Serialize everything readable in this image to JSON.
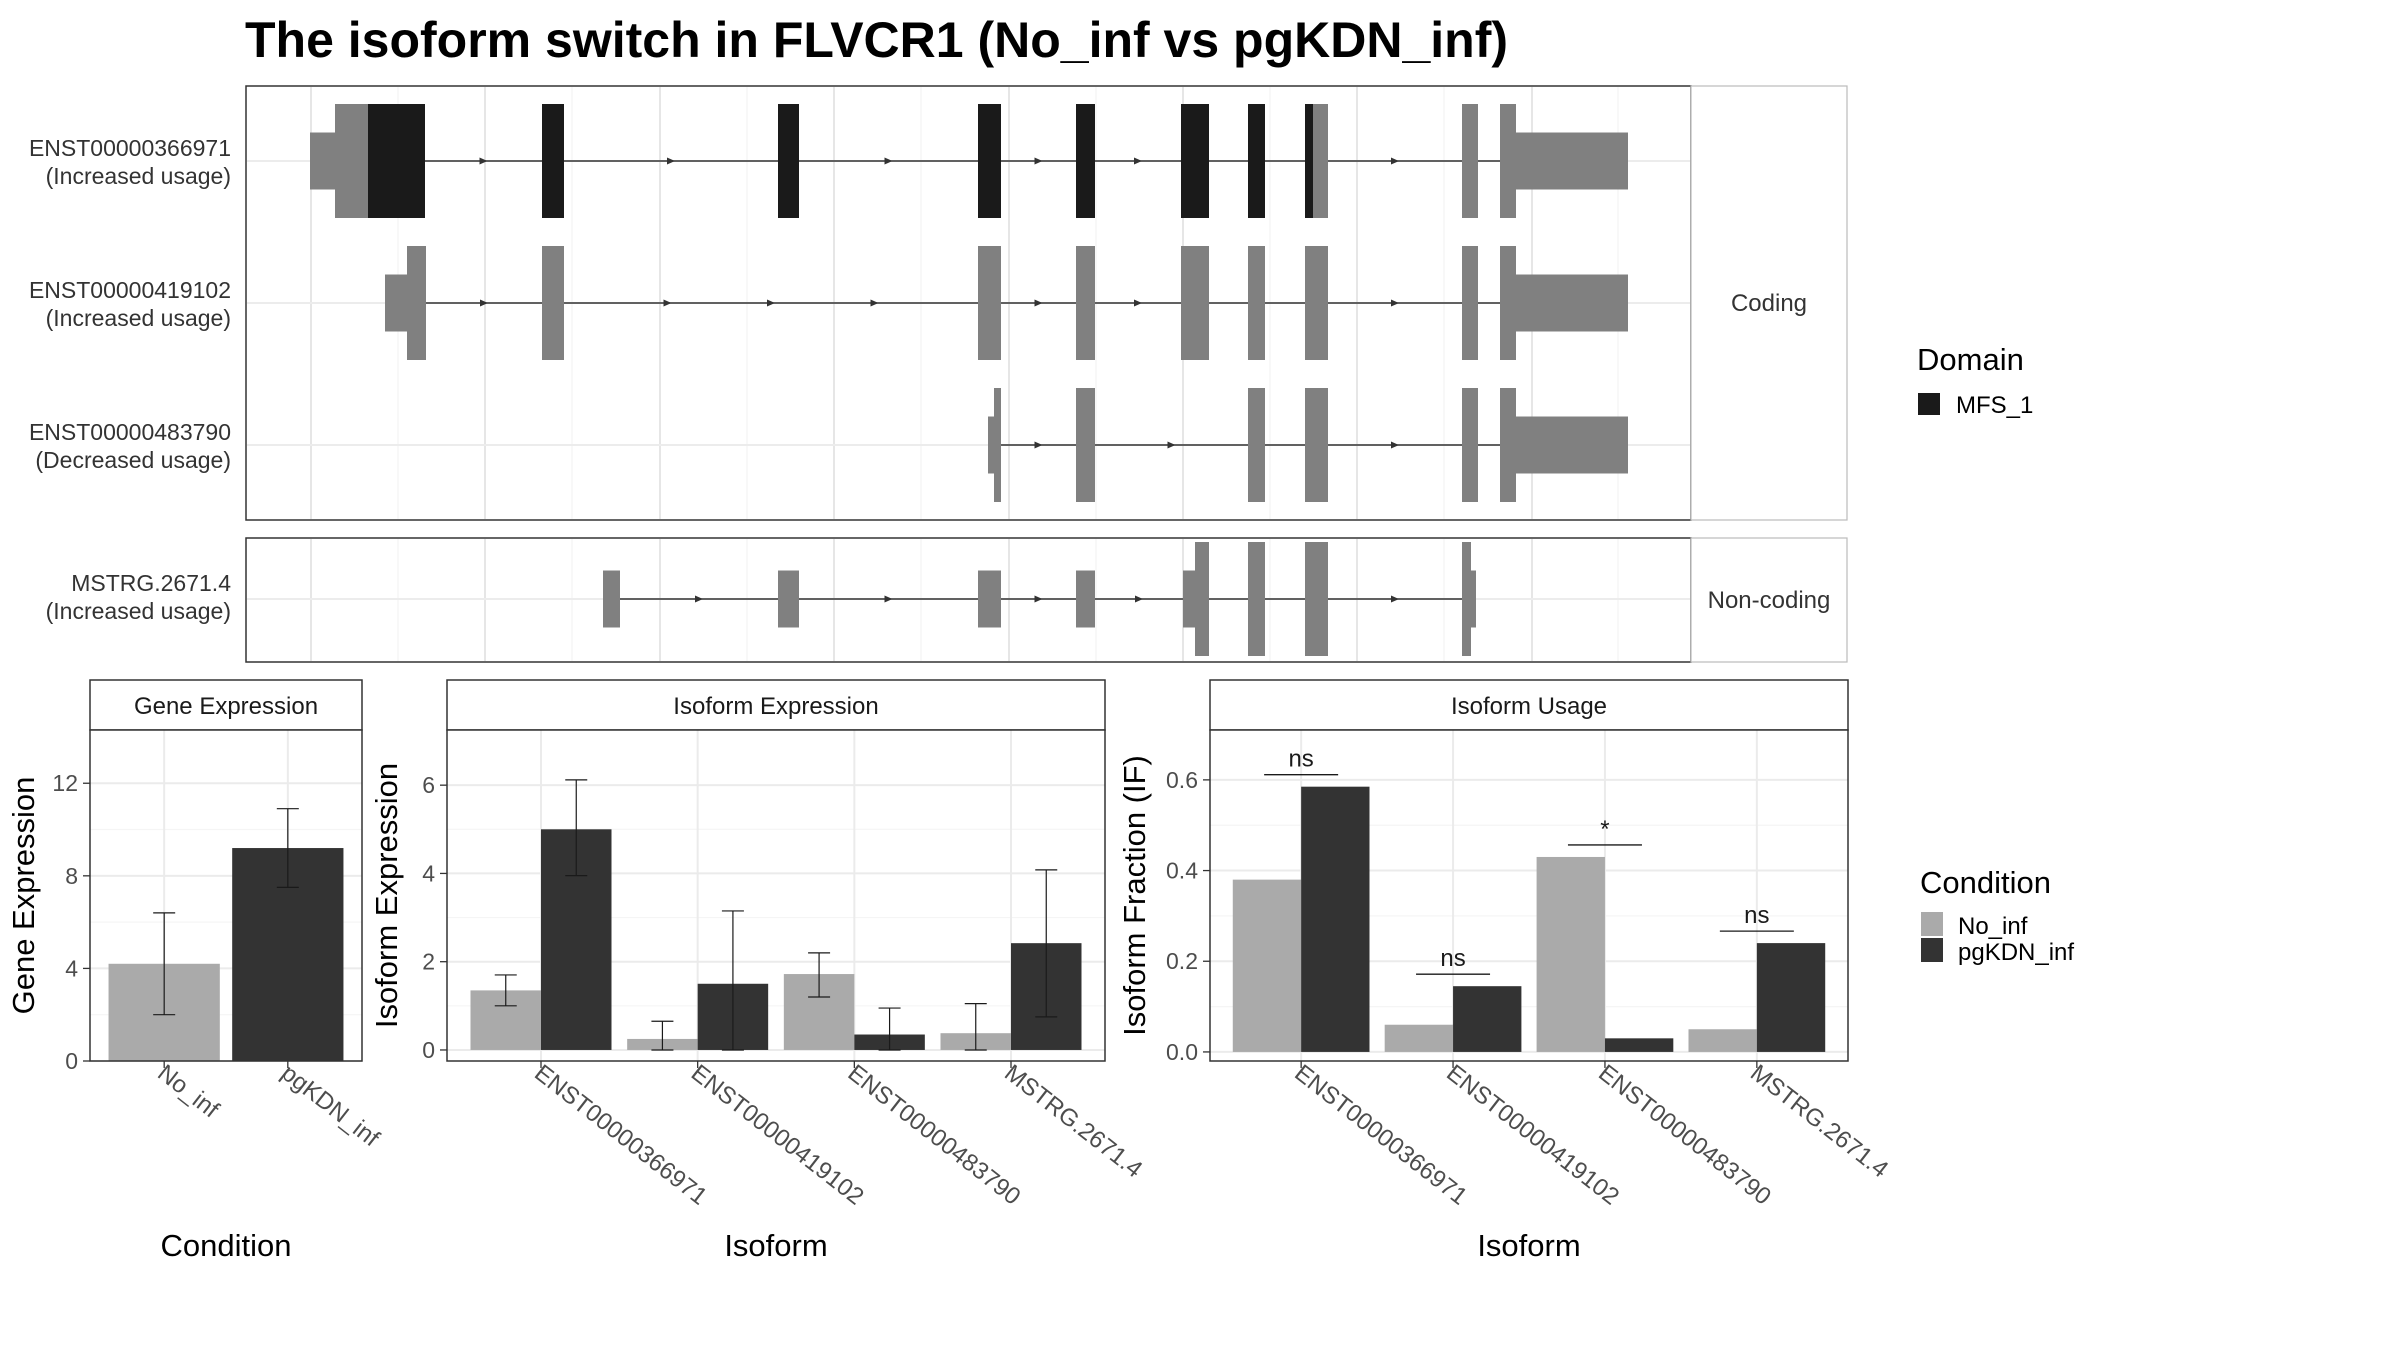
{
  "title": "The isoform switch in FLVCR1 (No_inf vs pgKDN_inf)",
  "transcript_panel": {
    "facets": [
      {
        "label": "Coding",
        "transcripts": [
          "ENST00000366971",
          "ENST00000419102",
          "ENST00000483790"
        ]
      },
      {
        "label": "Non-coding",
        "transcripts": [
          "MSTRG.2671.4"
        ]
      }
    ],
    "transcripts": [
      {
        "id": "ENST00000366971",
        "usage": "(Increased usage)"
      },
      {
        "id": "ENST00000419102",
        "usage": "(Increased usage)"
      },
      {
        "id": "ENST00000483790",
        "usage": "(Decreased usage)"
      },
      {
        "id": "MSTRG.2671.4",
        "usage": "(Increased usage)"
      }
    ]
  },
  "legend_domain": {
    "title": "Domain",
    "items": [
      {
        "label": "MFS_1",
        "color": "#1a1a1a"
      }
    ]
  },
  "legend_condition": {
    "title": "Condition",
    "items": [
      {
        "label": "No_inf",
        "color": "#aaaaaa"
      },
      {
        "label": "pgKDN_inf",
        "color": "#333333"
      }
    ]
  },
  "colors": {
    "no_inf": "#aaaaaa",
    "pgkdn_inf": "#333333",
    "exon": "#808080",
    "domain": "#1a1a1a"
  },
  "chart_data": [
    {
      "type": "bar",
      "title": "Gene Expression",
      "xlabel": "Condition",
      "ylabel": "Gene Expression",
      "categories": [
        "No_inf",
        "pgKDN_inf"
      ],
      "values": [
        4.2,
        9.2
      ],
      "error_low": [
        2.0,
        7.5
      ],
      "error_high": [
        6.4,
        10.9
      ],
      "yticks": [
        "0",
        "4",
        "8",
        "12"
      ],
      "ylim": [
        0,
        14.3
      ]
    },
    {
      "type": "bar",
      "title": "Isoform Expression",
      "xlabel": "Isoform",
      "ylabel": "Isoform Expression",
      "categories": [
        "ENST00000366971",
        "ENST00000419102",
        "ENST00000483790",
        "MSTRG.2671.4"
      ],
      "series": [
        {
          "name": "No_inf",
          "values": [
            1.35,
            0.25,
            1.72,
            0.38
          ],
          "error_low": [
            1.0,
            0.0,
            1.2,
            0.0
          ],
          "error_high": [
            1.7,
            0.65,
            2.2,
            1.05
          ]
        },
        {
          "name": "pgKDN_inf",
          "values": [
            5.0,
            1.5,
            0.35,
            2.42
          ],
          "error_low": [
            3.95,
            0.0,
            0.0,
            0.75
          ],
          "error_high": [
            6.12,
            3.15,
            0.95,
            4.08
          ]
        }
      ],
      "yticks": [
        "0",
        "2",
        "4",
        "6"
      ],
      "ylim": [
        -0.25,
        7.25
      ]
    },
    {
      "type": "bar",
      "title": "Isoform Usage",
      "xlabel": "Isoform",
      "ylabel": "Isoform Fraction (IF)",
      "categories": [
        "ENST00000366971",
        "ENST00000419102",
        "ENST00000483790",
        "MSTRG.2671.4"
      ],
      "series": [
        {
          "name": "No_inf",
          "values": [
            0.38,
            0.06,
            0.43,
            0.05
          ]
        },
        {
          "name": "pgKDN_inf",
          "values": [
            0.585,
            0.145,
            0.03,
            0.24
          ]
        }
      ],
      "significance": [
        "ns",
        "ns",
        "*",
        "ns"
      ],
      "yticks": [
        "0.0",
        "0.2",
        "0.4",
        "0.6"
      ],
      "ylim": [
        -0.02,
        0.71
      ]
    }
  ]
}
